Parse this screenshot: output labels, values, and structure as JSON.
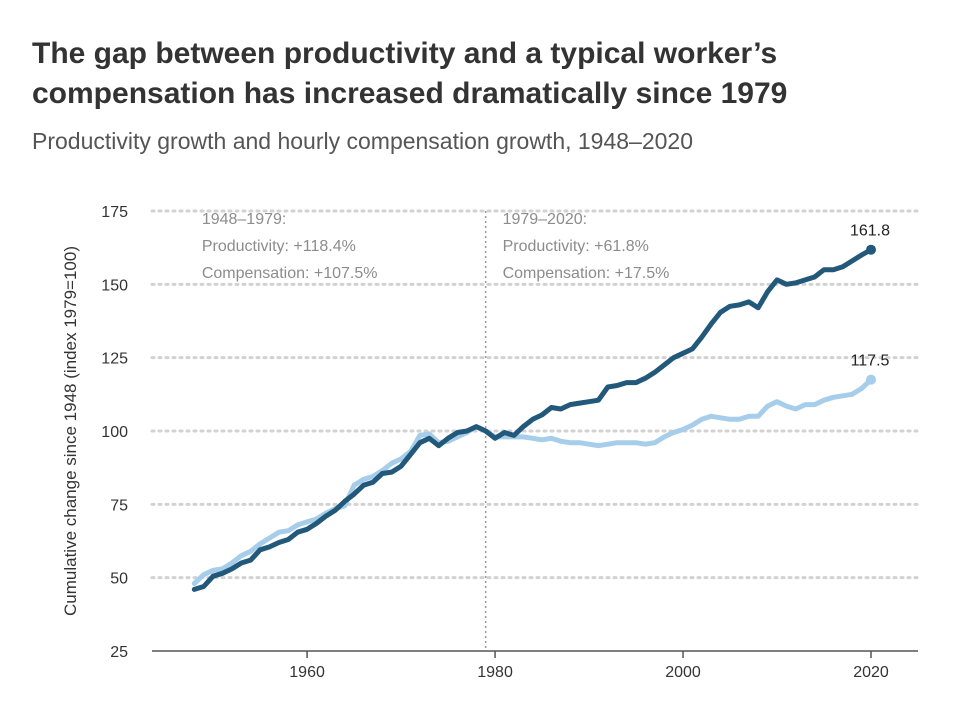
{
  "chart_data": {
    "type": "line",
    "title": "The gap between productivity and a typical worker’s compensation has increased dramatically since 1979",
    "subtitle": "Productivity growth and hourly compensation growth, 1948–2020",
    "xlabel": "",
    "ylabel": "Cumulative change since 1948 (index 1979=100)",
    "xlim": [
      1943.5,
      2025
    ],
    "ylim": [
      25,
      175
    ],
    "xticks": [
      1960,
      1980,
      2000,
      2020
    ],
    "yticks": [
      25,
      50,
      75,
      100,
      125,
      150,
      175
    ],
    "grid": "horizontal dotted",
    "reference_line": 1979,
    "annotations": [
      {
        "x": 1948.8,
        "lines": [
          "1948–1979:",
          "Productivity: +118.4%",
          "Compensation: +107.5%"
        ]
      },
      {
        "x": 1980.8,
        "lines": [
          "1979–2020:",
          "Productivity: +61.8%",
          "Compensation: +17.5%"
        ]
      }
    ],
    "x": [
      1948,
      1949,
      1950,
      1951,
      1952,
      1953,
      1954,
      1955,
      1956,
      1957,
      1958,
      1959,
      1960,
      1961,
      1962,
      1963,
      1964,
      1965,
      1966,
      1967,
      1968,
      1969,
      1970,
      1971,
      1972,
      1973,
      1974,
      1975,
      1976,
      1977,
      1978,
      1979,
      1980,
      1981,
      1982,
      1983,
      1984,
      1985,
      1986,
      1987,
      1988,
      1989,
      1990,
      1991,
      1992,
      1993,
      1994,
      1995,
      1996,
      1997,
      1998,
      1999,
      2000,
      2001,
      2002,
      2003,
      2004,
      2005,
      2006,
      2007,
      2008,
      2009,
      2010,
      2011,
      2012,
      2013,
      2014,
      2015,
      2016,
      2017,
      2018,
      2019,
      2020
    ],
    "series": [
      {
        "name": "Productivity",
        "color": "#22587a",
        "end_label": "161.8",
        "values": [
          46,
          47,
          50.5,
          51.5,
          53,
          55,
          56,
          59.5,
          60.5,
          62,
          63,
          65.5,
          66.5,
          68.5,
          71,
          73,
          76,
          78.5,
          81.5,
          82.5,
          85.5,
          86,
          88,
          92,
          96,
          97.5,
          95,
          97.5,
          99.5,
          100,
          101.5,
          100,
          97.5,
          99.5,
          98.5,
          101.5,
          104,
          105.5,
          108,
          107.5,
          109,
          109.5,
          110,
          110.5,
          115,
          115.5,
          116.5,
          116.5,
          118,
          120,
          122.5,
          125,
          126.5,
          128,
          132,
          136.5,
          140.5,
          142.5,
          143,
          144,
          142,
          147.5,
          151.5,
          150,
          150.5,
          151.5,
          152.5,
          155,
          155,
          156,
          158,
          160,
          161.8
        ]
      },
      {
        "name": "Compensation",
        "color": "#a6cdea",
        "end_label": "117.5",
        "values": [
          48,
          51,
          52.5,
          53,
          55,
          57.5,
          59,
          61.5,
          63.5,
          65.5,
          66,
          68,
          69,
          70,
          72,
          73.5,
          74.5,
          81.5,
          83.5,
          84.5,
          86.5,
          89,
          90.5,
          93,
          98.5,
          99,
          96,
          96.5,
          98,
          99.5,
          101.5,
          100,
          98,
          98,
          98,
          98,
          97.5,
          97,
          97.5,
          96.5,
          96,
          96,
          95.5,
          95,
          95.5,
          96,
          96,
          96,
          95.5,
          96,
          98,
          99.5,
          100.5,
          102,
          104,
          105,
          104.5,
          104,
          104,
          105,
          105,
          108.5,
          110,
          108.5,
          107.5,
          109,
          109,
          110.5,
          111.5,
          112,
          112.5,
          114.5,
          117.5
        ]
      }
    ]
  }
}
